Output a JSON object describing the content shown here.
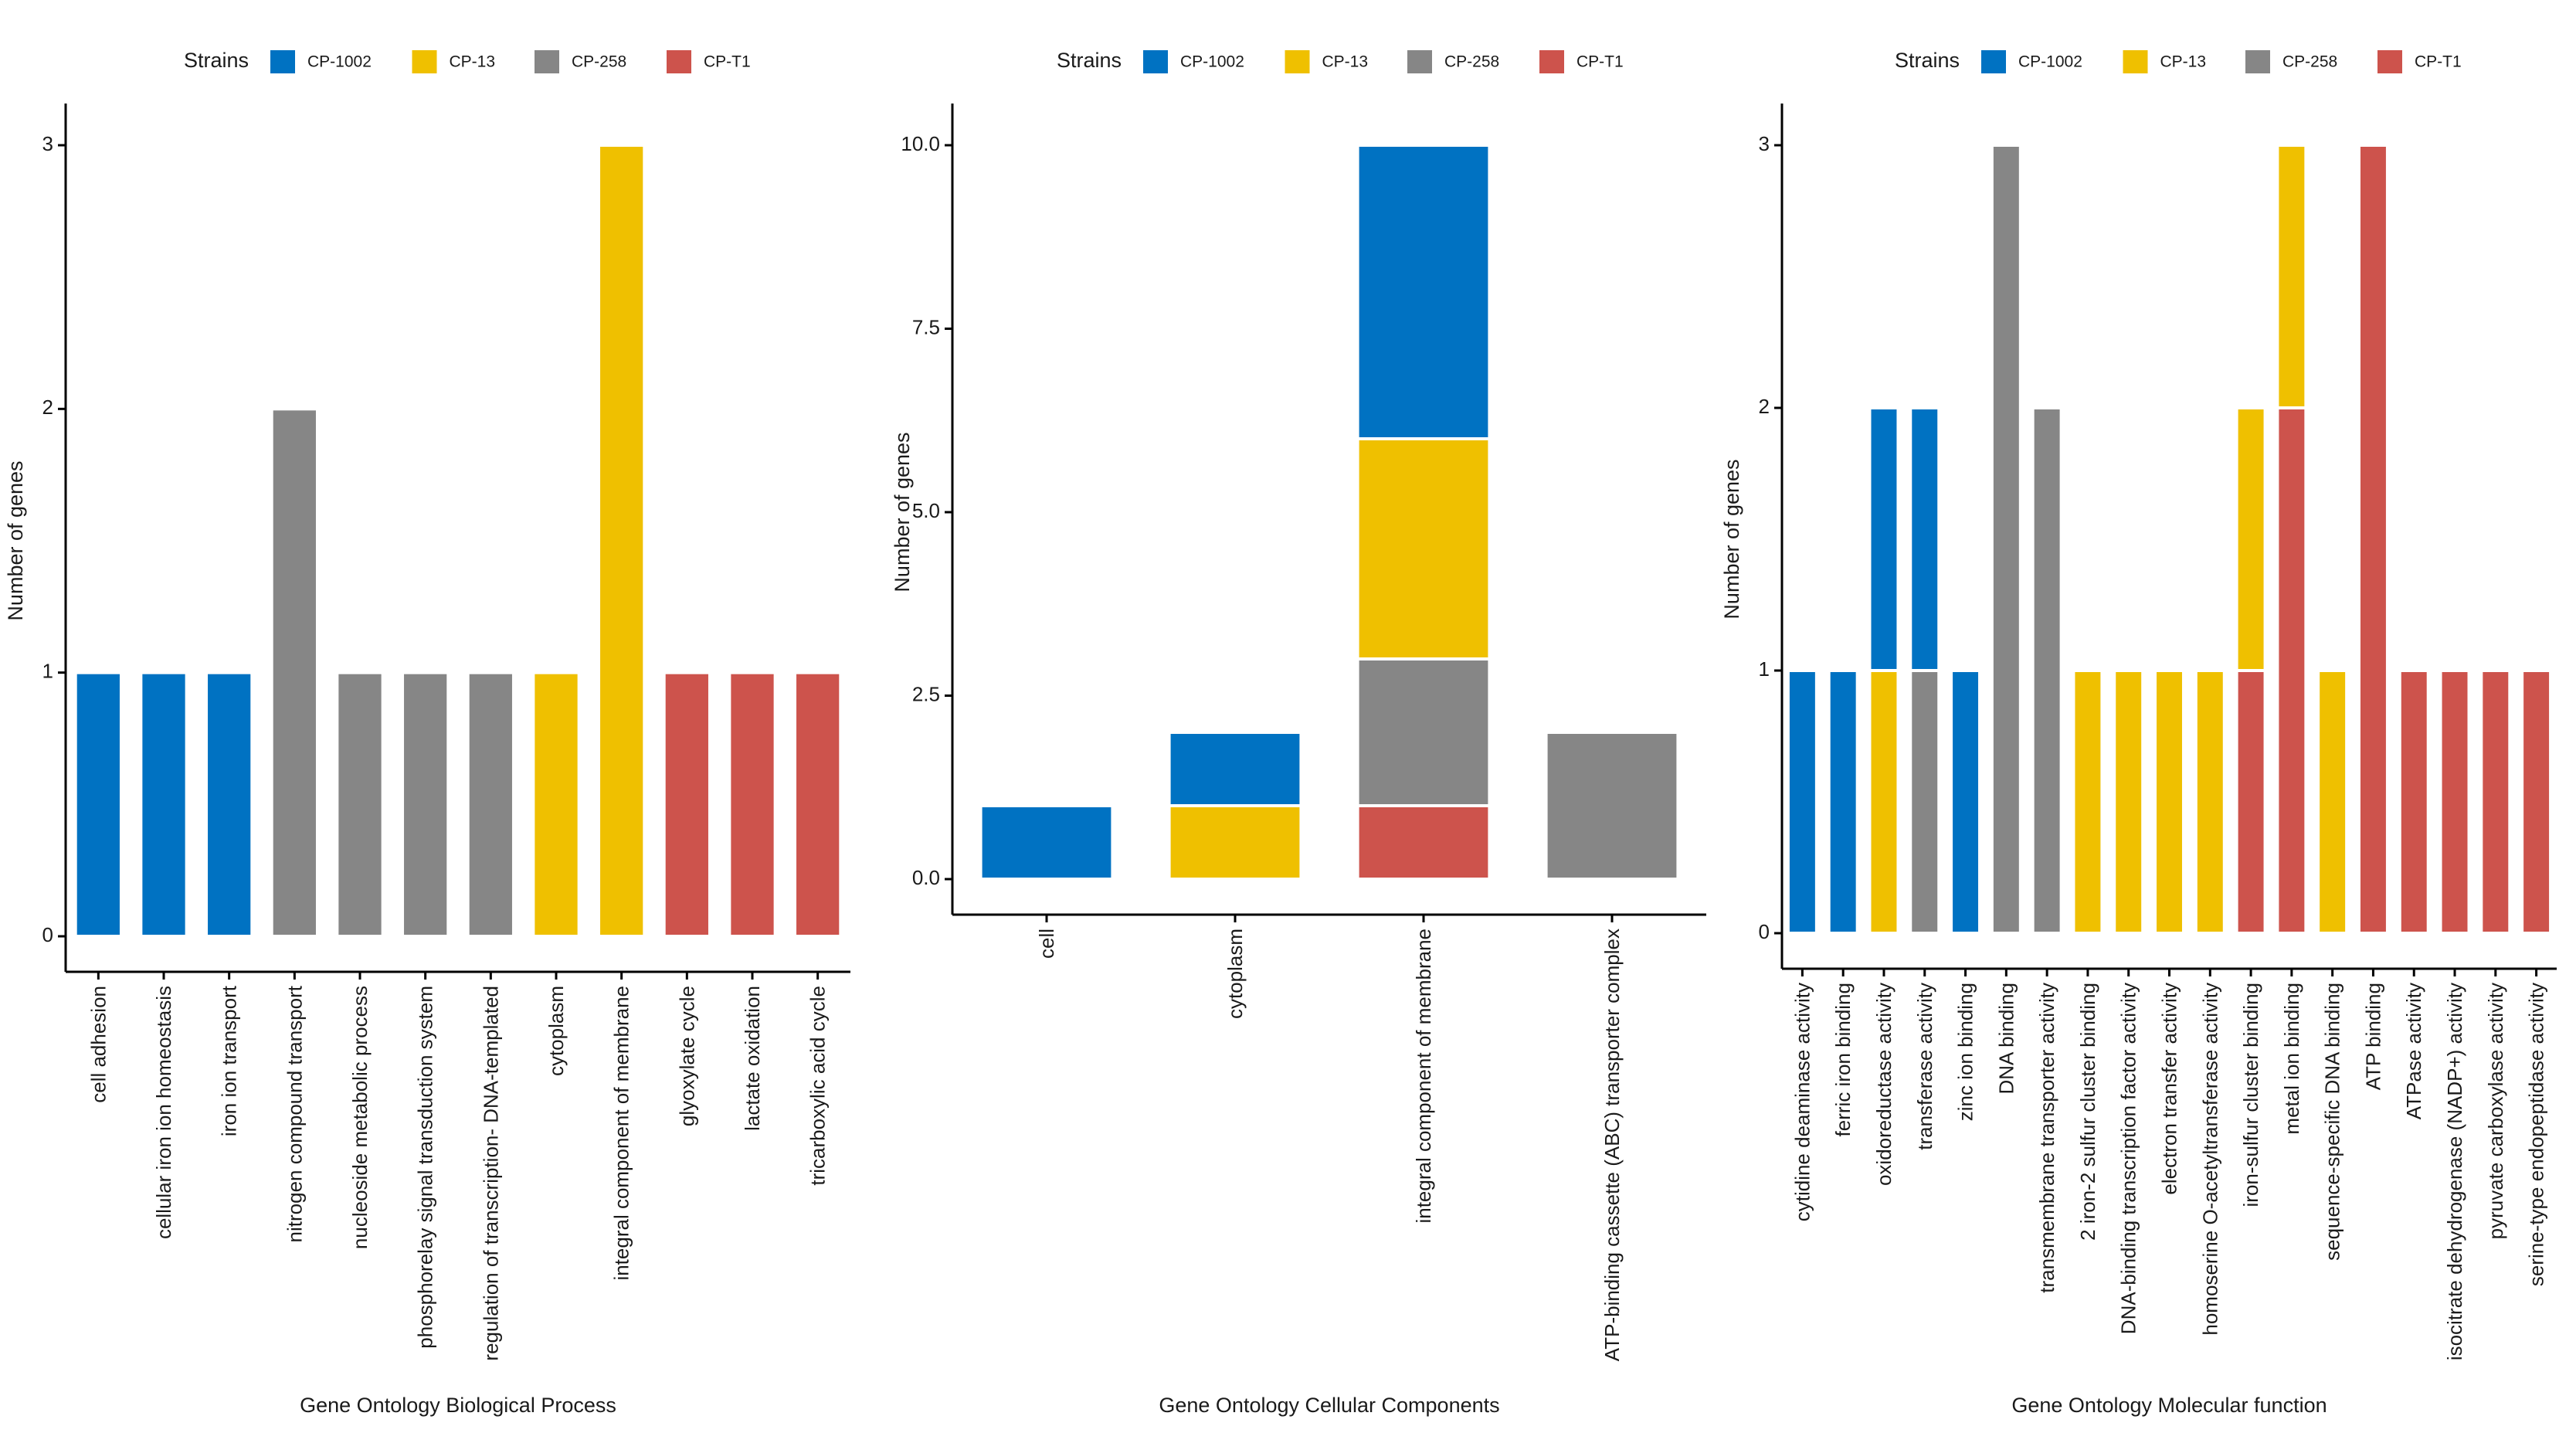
{
  "legend": {
    "title": "Strains",
    "entries": [
      {
        "name": "CP-1002",
        "color": "#0072C2"
      },
      {
        "name": "CP-13",
        "color": "#EFC000"
      },
      {
        "name": "CP-258",
        "color": "#868686"
      },
      {
        "name": "CP-T1",
        "color": "#CD534C"
      }
    ]
  },
  "chart_data": [
    {
      "type": "bar",
      "stacked": true,
      "legend_position": "top",
      "xlabel": "Gene Ontology Biological Process",
      "ylabel": "Number of genes",
      "ylim": [
        0,
        3
      ],
      "yticks": [
        0,
        1,
        2,
        3
      ],
      "ytick_labels": [
        "0",
        "1",
        "2",
        "3"
      ],
      "categories": [
        "cell adhesion",
        "cellular iron ion homeostasis",
        "iron ion transport",
        "nitrogen compound transport",
        "nucleoside metabolic process",
        "phosphorelay signal transduction system",
        "regulation of transcription- DNA-templated",
        "cytoplasm",
        "integral component of membrane",
        "glyoxylate cycle",
        "lactate oxidation",
        "tricarboxylic acid cycle"
      ],
      "series": [
        {
          "name": "CP-T1",
          "values": [
            0,
            0,
            0,
            0,
            0,
            0,
            0,
            0,
            0,
            1,
            1,
            1
          ]
        },
        {
          "name": "CP-258",
          "values": [
            0,
            0,
            0,
            2,
            1,
            1,
            1,
            0,
            0,
            0,
            0,
            0
          ]
        },
        {
          "name": "CP-13",
          "values": [
            0,
            0,
            0,
            0,
            0,
            0,
            0,
            1,
            3,
            0,
            0,
            0
          ]
        },
        {
          "name": "CP-1002",
          "values": [
            1,
            1,
            1,
            0,
            0,
            0,
            0,
            0,
            0,
            0,
            0,
            0
          ]
        }
      ]
    },
    {
      "type": "bar",
      "stacked": true,
      "legend_position": "top",
      "xlabel": "Gene Ontology Cellular Components",
      "ylabel": "Number of genes",
      "ylim": [
        0,
        10
      ],
      "yticks": [
        0,
        2.5,
        5,
        7.5,
        10
      ],
      "ytick_labels": [
        "0.0",
        "2.5",
        "5.0",
        "7.5",
        "10.0"
      ],
      "categories": [
        "cell",
        "cytoplasm",
        "integral component of membrane",
        "ATP-binding cassette (ABC) transporter complex"
      ],
      "series": [
        {
          "name": "CP-T1",
          "values": [
            0,
            0,
            1,
            0
          ]
        },
        {
          "name": "CP-258",
          "values": [
            0,
            0,
            2,
            2
          ]
        },
        {
          "name": "CP-13",
          "values": [
            0,
            1,
            3,
            0
          ]
        },
        {
          "name": "CP-1002",
          "values": [
            1,
            1,
            4,
            0
          ]
        }
      ]
    },
    {
      "type": "bar",
      "stacked": true,
      "legend_position": "top",
      "xlabel": "Gene Ontology Molecular function",
      "ylabel": "Number of genes",
      "ylim": [
        0,
        3
      ],
      "yticks": [
        0,
        1,
        2,
        3
      ],
      "ytick_labels": [
        "0",
        "1",
        "2",
        "3"
      ],
      "categories": [
        "cytidine deaminase activity",
        "ferric iron binding",
        "oxidoreductase activity",
        "transferase activity",
        "zinc ion binding",
        "DNA binding",
        "transmembrane transporter activity",
        "2 iron-2 sulfur cluster binding",
        "DNA-binding transcription factor activity",
        "electron transfer activity",
        "homoserine O-acetyltransferase activity",
        "iron-sulfur cluster binding",
        "metal ion binding",
        "sequence-specific DNA binding",
        "ATP binding",
        "ATPase activity",
        "isocitrate dehydrogenase (NADP+) activity",
        "pyruvate carboxylase activity",
        "serine-type endopeptidase activity"
      ],
      "series": [
        {
          "name": "CP-T1",
          "values": [
            0,
            0,
            0,
            0,
            0,
            0,
            0,
            0,
            0,
            0,
            0,
            1,
            2,
            0,
            3,
            1,
            1,
            1,
            1
          ]
        },
        {
          "name": "CP-258",
          "values": [
            0,
            0,
            0,
            1,
            0,
            3,
            2,
            0,
            0,
            0,
            0,
            0,
            0,
            0,
            0,
            0,
            0,
            0,
            0
          ]
        },
        {
          "name": "CP-13",
          "values": [
            0,
            0,
            1,
            0,
            0,
            0,
            0,
            1,
            1,
            1,
            1,
            1,
            1,
            1,
            0,
            0,
            0,
            0,
            0
          ]
        },
        {
          "name": "CP-1002",
          "values": [
            1,
            1,
            1,
            1,
            1,
            0,
            0,
            0,
            0,
            0,
            0,
            0,
            0,
            0,
            0,
            0,
            0,
            0,
            0
          ]
        }
      ]
    }
  ]
}
